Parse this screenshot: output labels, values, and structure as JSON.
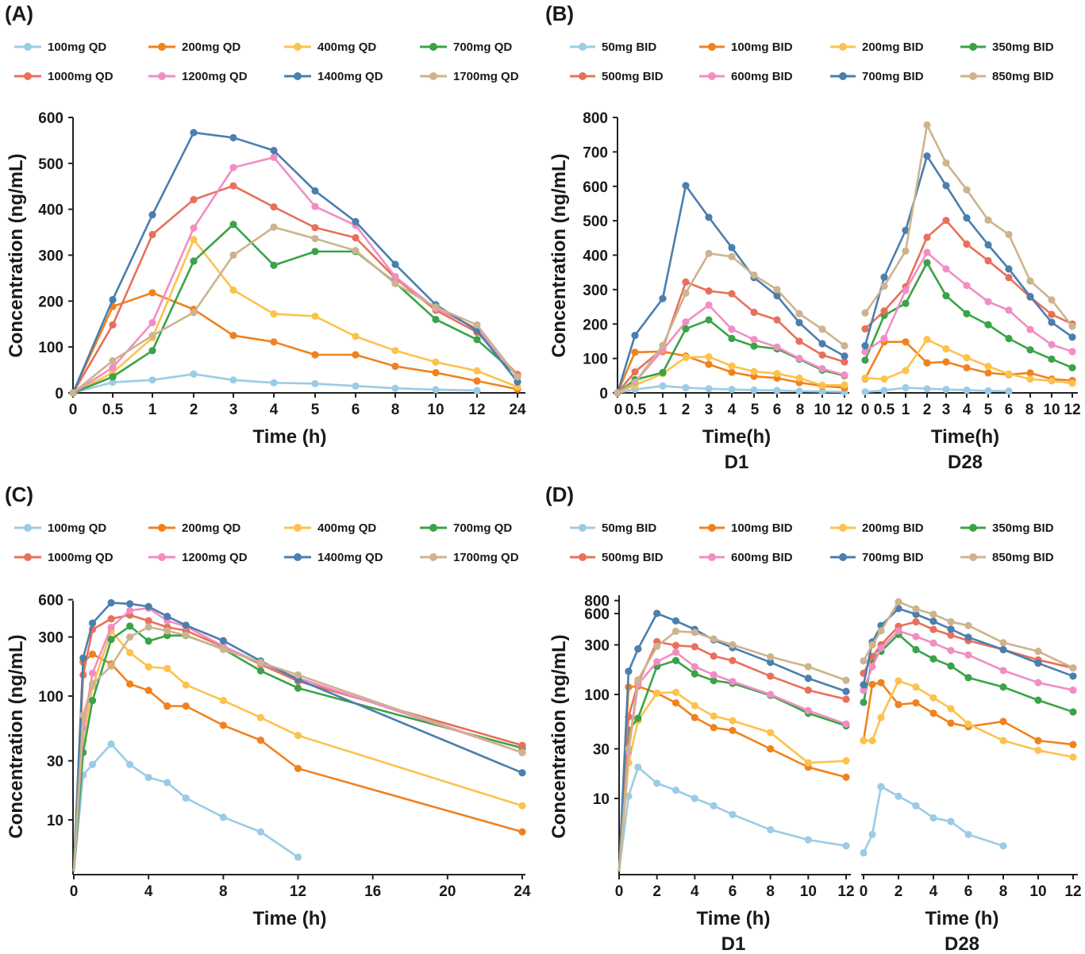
{
  "colors": [
    "#9ccbe6",
    "#f0821e",
    "#fcc24d",
    "#3aa347",
    "#e8705a",
    "#f08ec4",
    "#4a7fae",
    "#cdb38e"
  ],
  "chart_data": [
    {
      "panel": "(A)",
      "type": "line",
      "scale": "linear",
      "xlabel": "Time (h)",
      "ylabel": "Concentration (ng/mL)",
      "x_categorical": [
        "0",
        "0.5",
        "1",
        "2",
        "3",
        "4",
        "5",
        "6",
        "8",
        "10",
        "12",
        "24"
      ],
      "ylim": [
        0,
        600
      ],
      "yticks": [
        0,
        100,
        200,
        300,
        400,
        500,
        600
      ],
      "legend_position": "top",
      "series": [
        {
          "name": "100mg QD",
          "values": [
            0,
            23,
            28,
            41,
            28,
            22,
            20,
            15,
            10,
            7,
            5,
            null
          ]
        },
        {
          "name": "200mg QD",
          "values": [
            0,
            188,
            218,
            182,
            125,
            111,
            83,
            83,
            58,
            44,
            26,
            8
          ]
        },
        {
          "name": "400mg QD",
          "values": [
            0,
            44,
            120,
            334,
            224,
            172,
            167,
            123,
            92,
            67,
            48,
            13
          ]
        },
        {
          "name": "700mg QD",
          "values": [
            0,
            35,
            92,
            287,
            367,
            278,
            308,
            308,
            240,
            160,
            116,
            38
          ]
        },
        {
          "name": "1000mg QD",
          "values": [
            0,
            148,
            345,
            421,
            451,
            405,
            360,
            338,
            250,
            180,
            132,
            40
          ]
        },
        {
          "name": "1200mg QD",
          "values": [
            0,
            55,
            153,
            359,
            491,
            513,
            406,
            365,
            253,
            184,
            140,
            35
          ]
        },
        {
          "name": "1400mg QD",
          "values": [
            0,
            203,
            388,
            567,
            556,
            528,
            440,
            373,
            280,
            192,
            136,
            24
          ]
        },
        {
          "name": "1700mg QD",
          "values": [
            0,
            70,
            125,
            175,
            300,
            361,
            336,
            310,
            238,
            187,
            148,
            35
          ]
        }
      ]
    },
    {
      "panel": "(B)",
      "type": "line",
      "scale": "linear",
      "xlabel": "Time(h)",
      "ylabel": "Concentration (ng/mL)",
      "subplots": [
        {
          "label": "D1",
          "x_categorical": [
            "0",
            "0.5",
            "1",
            "2",
            "3",
            "4",
            "5",
            "6",
            "8",
            "10",
            "12"
          ],
          "series": [
            {
              "name": "50mg BID",
              "values": [
                0,
                10,
                20,
                15,
                12,
                10,
                8,
                7,
                5,
                4,
                3
              ]
            },
            {
              "name": "100mg BID",
              "values": [
                0,
                118,
                120,
                107,
                83,
                60,
                48,
                43,
                30,
                20,
                15
              ]
            },
            {
              "name": "200mg BID",
              "values": [
                0,
                22,
                56,
                103,
                105,
                78,
                62,
                56,
                43,
                22,
                23
              ]
            },
            {
              "name": "350mg BID",
              "values": [
                0,
                38,
                59,
                186,
                212,
                158,
                136,
                128,
                98,
                66,
                50
              ]
            },
            {
              "name": "500mg BID",
              "values": [
                0,
                61,
                128,
                322,
                296,
                288,
                234,
                212,
                150,
                110,
                90
              ]
            },
            {
              "name": "600mg BID",
              "values": [
                0,
                31,
                125,
                206,
                255,
                185,
                155,
                133,
                100,
                70,
                52
              ]
            },
            {
              "name": "700mg BID",
              "values": [
                0,
                167,
                274,
                602,
                510,
                422,
                335,
                282,
                204,
                143,
                107
              ]
            },
            {
              "name": "850mg BID",
              "values": [
                0,
                30,
                138,
                290,
                405,
                396,
                342,
                300,
                230,
                185,
                137
              ]
            }
          ]
        },
        {
          "label": "D28",
          "x_categorical": [
            "0",
            "0.5",
            "1",
            "2",
            "3",
            "4",
            "5",
            "6",
            "8",
            "10",
            "12"
          ],
          "series": [
            {
              "name": "50mg BID",
              "values": [
                3,
                7,
                15,
                12,
                10,
                8,
                6,
                5,
                null,
                null,
                null
              ]
            },
            {
              "name": "100mg BID",
              "values": [
                41,
                148,
                148,
                87,
                90,
                73,
                58,
                53,
                58,
                40,
                36
              ]
            },
            {
              "name": "200mg BID",
              "values": [
                43,
                40,
                65,
                155,
                128,
                102,
                77,
                55,
                40,
                35,
                28
              ]
            },
            {
              "name": "350mg BID",
              "values": [
                95,
                225,
                260,
                378,
                282,
                230,
                198,
                158,
                125,
                98,
                73
              ]
            },
            {
              "name": "500mg BID",
              "values": [
                186,
                238,
                308,
                452,
                501,
                432,
                384,
                335,
                278,
                228,
                200
              ]
            },
            {
              "name": "600mg BID",
              "values": [
                120,
                158,
                298,
                408,
                360,
                312,
                265,
                240,
                184,
                140,
                120
              ]
            },
            {
              "name": "700mg BID",
              "values": [
                137,
                336,
                472,
                688,
                602,
                508,
                430,
                360,
                280,
                205,
                162
              ]
            },
            {
              "name": "850mg BID",
              "values": [
                232,
                310,
                412,
                778,
                668,
                590,
                502,
                460,
                325,
                270,
                193
              ]
            }
          ]
        }
      ],
      "ylim": [
        0,
        800
      ],
      "yticks": [
        0,
        100,
        200,
        300,
        400,
        500,
        600,
        700,
        800
      ],
      "legend_position": "top"
    },
    {
      "panel": "(C)",
      "type": "line",
      "scale": "log",
      "xlabel": "Time (h)",
      "ylabel": "Concentration (ng/mL)",
      "xlim": [
        0,
        24
      ],
      "xticks": [
        0,
        4,
        8,
        12,
        16,
        20,
        24
      ],
      "yticks": [
        10,
        30,
        100,
        300,
        600
      ],
      "legend_position": "top",
      "x": [
        0,
        0.5,
        1,
        2,
        3,
        4,
        5,
        6,
        8,
        10,
        12,
        24
      ],
      "series": [
        {
          "name": "100mg QD",
          "values": [
            null,
            23,
            28,
            41,
            28,
            22,
            20,
            15,
            10.5,
            8,
            5,
            null
          ]
        },
        {
          "name": "200mg QD",
          "values": [
            null,
            188,
            218,
            182,
            125,
            111,
            83,
            83,
            58,
            44,
            26,
            8
          ]
        },
        {
          "name": "400mg QD",
          "values": [
            null,
            44,
            120,
            334,
            224,
            172,
            167,
            123,
            92,
            67,
            48,
            13
          ]
        },
        {
          "name": "700mg QD",
          "values": [
            null,
            35,
            92,
            287,
            367,
            278,
            308,
            308,
            240,
            160,
            116,
            38
          ]
        },
        {
          "name": "1000mg QD",
          "values": [
            null,
            148,
            345,
            421,
            451,
            405,
            360,
            338,
            250,
            180,
            132,
            40
          ]
        },
        {
          "name": "1200mg QD",
          "values": [
            null,
            55,
            153,
            359,
            491,
            513,
            406,
            365,
            253,
            184,
            140,
            35
          ]
        },
        {
          "name": "1400mg QD",
          "values": [
            null,
            203,
            388,
            567,
            556,
            528,
            440,
            373,
            280,
            192,
            136,
            24
          ]
        },
        {
          "name": "1700mg QD",
          "values": [
            null,
            70,
            125,
            175,
            300,
            361,
            336,
            310,
            238,
            187,
            148,
            35
          ]
        }
      ]
    },
    {
      "panel": "(D)",
      "type": "line",
      "scale": "log",
      "xlabel": "Time (h)",
      "ylabel": "Concentration (ng/mL)",
      "xticks": [
        0,
        2,
        4,
        6,
        8,
        10,
        12
      ],
      "yticks": [
        10,
        30,
        100,
        300,
        600,
        800
      ],
      "legend_position": "top",
      "subplots": [
        {
          "label": "D1",
          "x": [
            0,
            0.5,
            1,
            2,
            3,
            4,
            5,
            6,
            8,
            10,
            12
          ],
          "series": [
            {
              "name": "50mg BID",
              "values": [
                null,
                10.5,
                20,
                14,
                12,
                10,
                8.5,
                7,
                5,
                4,
                3.5
              ]
            },
            {
              "name": "100mg BID",
              "values": [
                null,
                118,
                120,
                103,
                83,
                60,
                48,
                45,
                30,
                20,
                16
              ]
            },
            {
              "name": "200mg BID",
              "values": [
                null,
                22,
                56,
                103,
                105,
                78,
                62,
                56,
                43,
                22,
                23
              ]
            },
            {
              "name": "350mg BID",
              "values": [
                null,
                45,
                59,
                186,
                212,
                158,
                136,
                128,
                98,
                66,
                50
              ]
            },
            {
              "name": "500mg BID",
              "values": [
                null,
                61,
                128,
                322,
                296,
                288,
                234,
                212,
                150,
                110,
                90
              ]
            },
            {
              "name": "600mg BID",
              "values": [
                null,
                28,
                125,
                206,
                255,
                185,
                155,
                133,
                100,
                70,
                52
              ]
            },
            {
              "name": "700mg BID",
              "values": [
                null,
                167,
                274,
                602,
                510,
                422,
                335,
                282,
                204,
                143,
                107
              ]
            },
            {
              "name": "850mg BID",
              "values": [
                null,
                30,
                138,
                290,
                405,
                396,
                342,
                300,
                230,
                185,
                137
              ]
            }
          ]
        },
        {
          "label": "D28",
          "x": [
            0,
            0.5,
            1,
            2,
            3,
            4,
            5,
            6,
            8,
            10,
            12
          ],
          "series": [
            {
              "name": "50mg BID",
              "values": [
                3,
                4.5,
                13,
                10.5,
                8.5,
                6.5,
                6,
                4.5,
                3.5,
                null,
                null
              ]
            },
            {
              "name": "100mg BID",
              "values": [
                36,
                125,
                130,
                80,
                83,
                66,
                53,
                49,
                55,
                36,
                33
              ]
            },
            {
              "name": "200mg BID",
              "values": [
                36,
                36,
                60,
                135,
                118,
                93,
                73,
                52,
                36,
                29,
                25
              ]
            },
            {
              "name": "350mg BID",
              "values": [
                84,
                220,
                260,
                378,
                270,
                220,
                188,
                145,
                118,
                88,
                68
              ]
            },
            {
              "name": "500mg BID",
              "values": [
                160,
                232,
                300,
                452,
                500,
                422,
                372,
                330,
                270,
                215,
                180
              ]
            },
            {
              "name": "600mg BID",
              "values": [
                110,
                185,
                280,
                408,
                360,
                312,
                265,
                240,
                170,
                130,
                110
              ]
            },
            {
              "name": "700mg BID",
              "values": [
                124,
                320,
                460,
                670,
                590,
                506,
                425,
                355,
                270,
                200,
                150
              ]
            },
            {
              "name": "850mg BID",
              "values": [
                210,
                300,
                410,
                778,
                665,
                590,
                500,
                460,
                315,
                260,
                180
              ]
            }
          ]
        }
      ],
      "legend_position2": "top"
    }
  ]
}
